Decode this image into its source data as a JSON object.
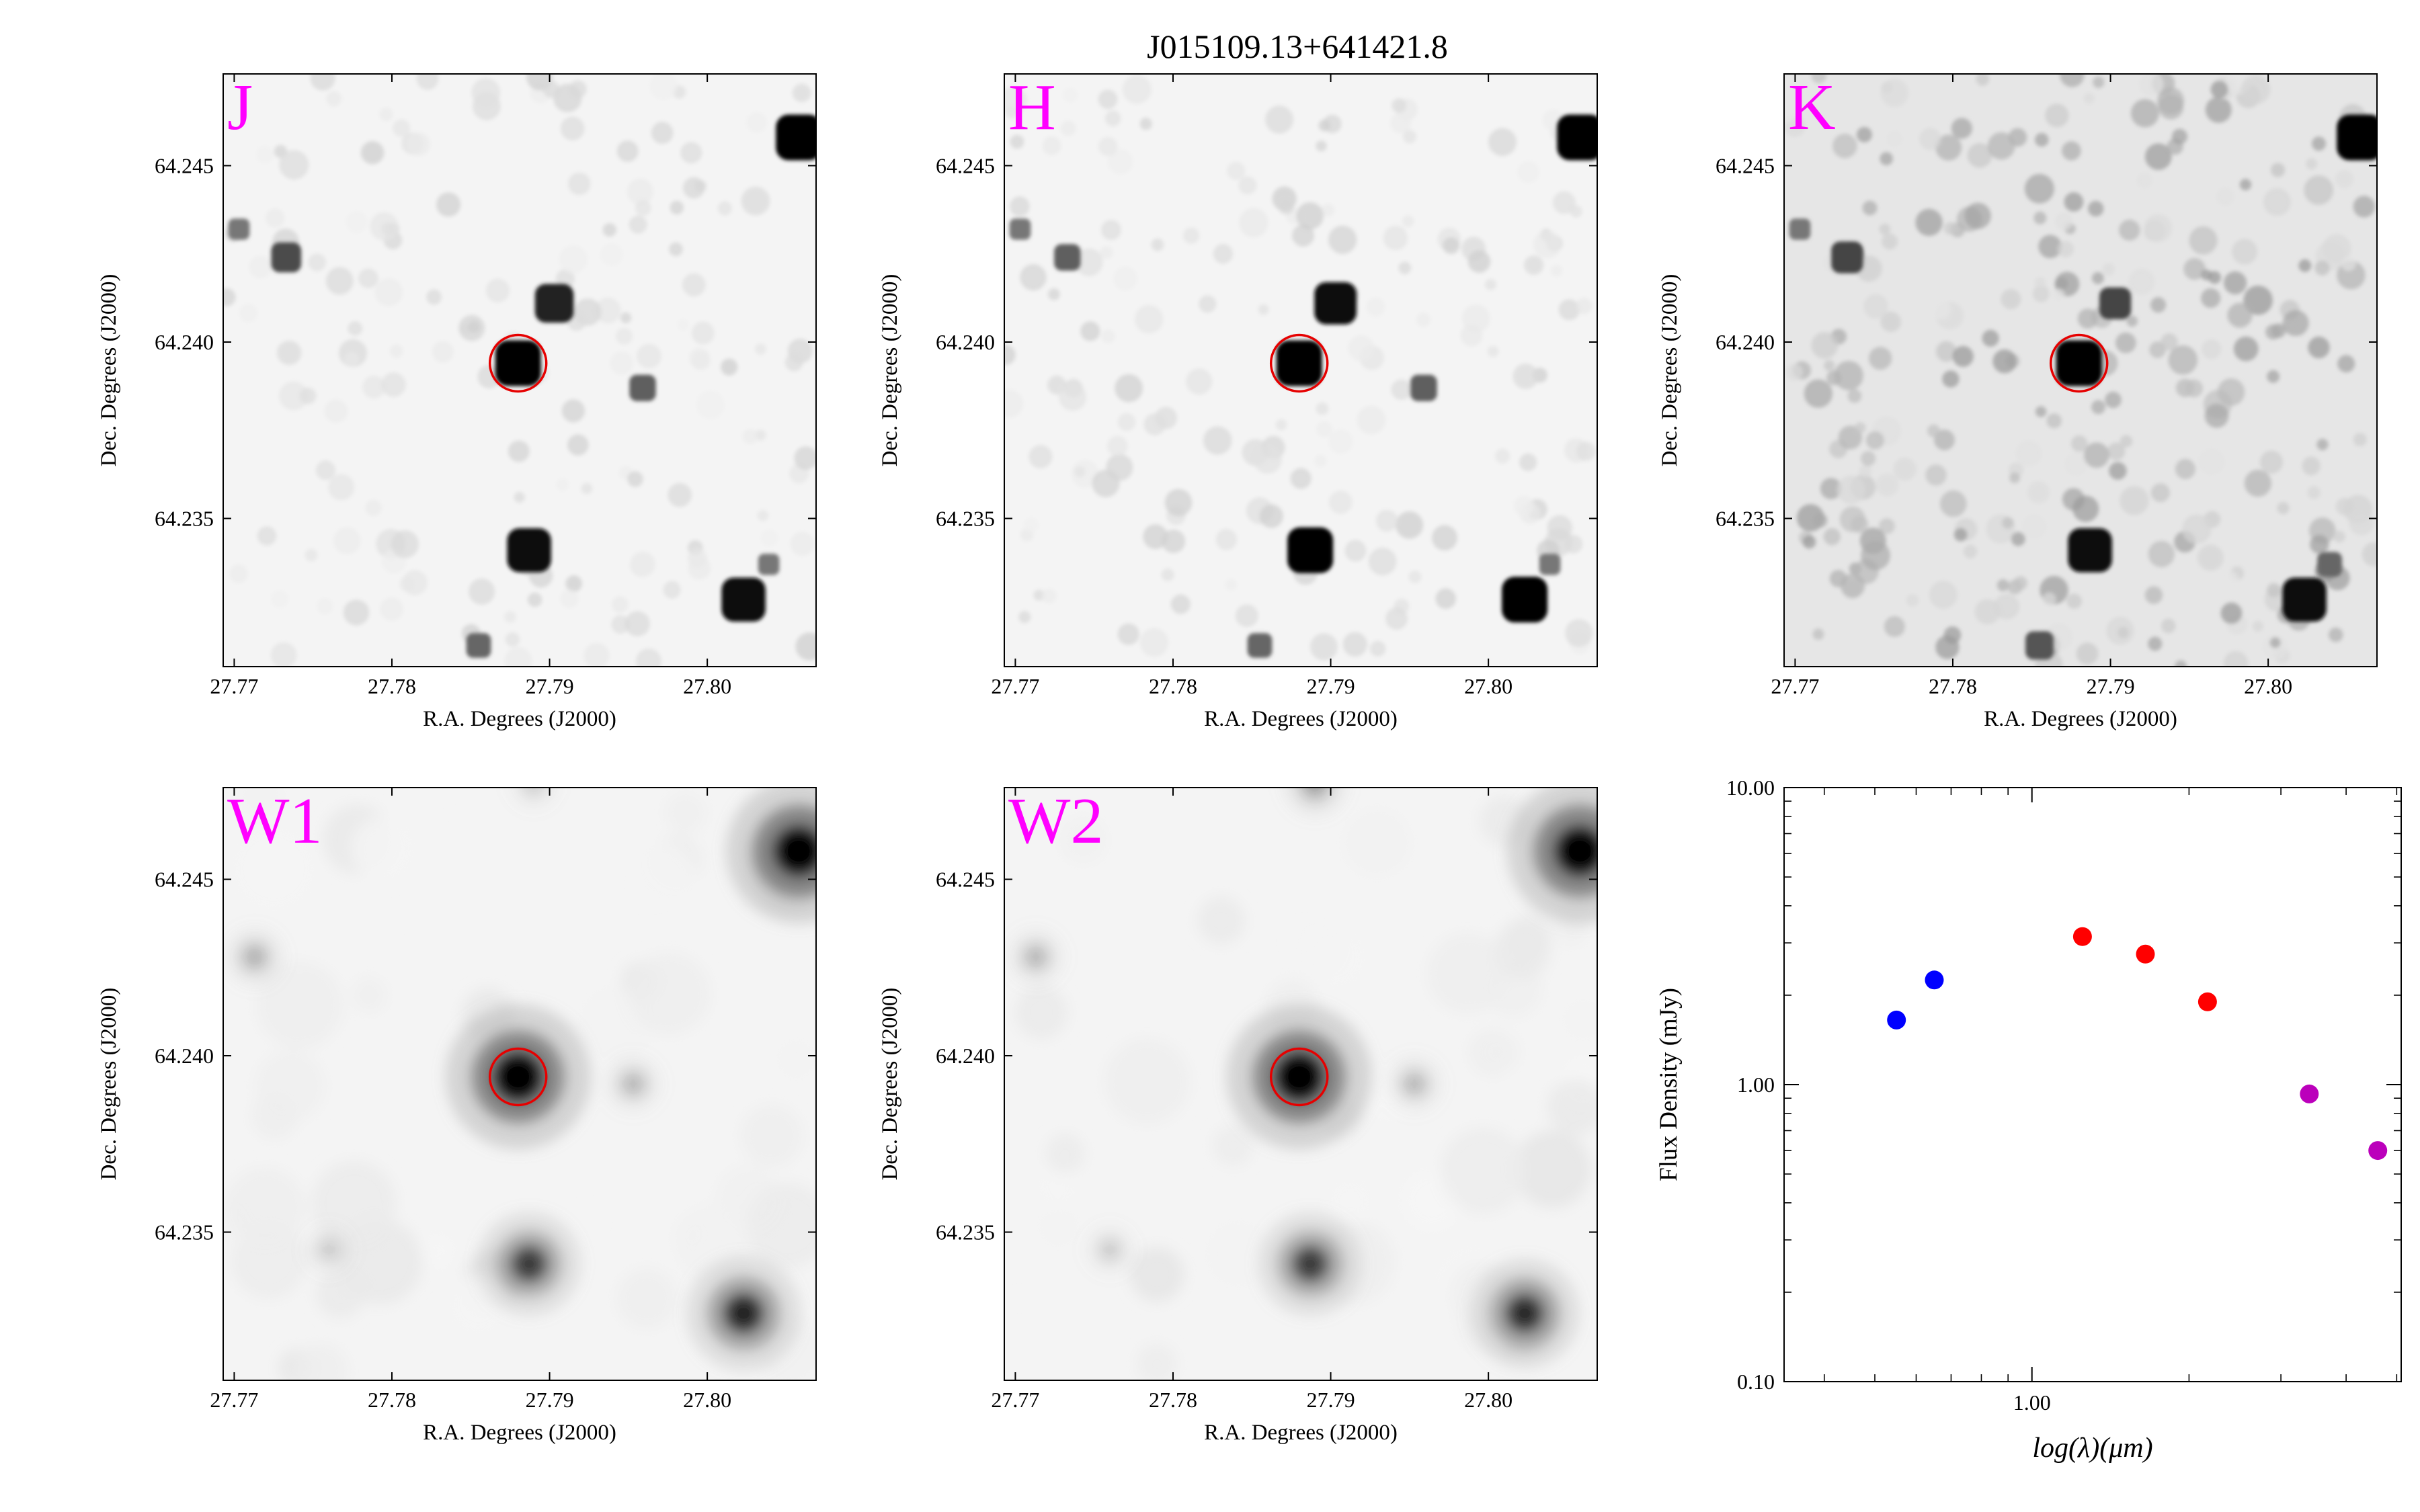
{
  "figure": {
    "title": "J015109.13+641421.8"
  },
  "image_panels": [
    {
      "band": "J",
      "xlabel": "R.A. Degrees (J2000)",
      "ylabel": "Dec. Degrees (J2000)",
      "xticks": [
        "27.77",
        "27.78",
        "27.79",
        "27.80"
      ],
      "yticks": [
        "64.245",
        "64.240",
        "64.235"
      ],
      "style": "sharp",
      "marker": {
        "ra": 27.788,
        "dec": 64.2394
      },
      "sources": [
        {
          "ra": 27.8058,
          "dec": 64.2458,
          "strength": 1.0
        },
        {
          "ra": 27.788,
          "dec": 64.2394,
          "strength": 1.0
        },
        {
          "ra": 27.7903,
          "dec": 64.2411,
          "strength": 0.8
        },
        {
          "ra": 27.7959,
          "dec": 64.2387,
          "strength": 0.45
        },
        {
          "ra": 27.7733,
          "dec": 64.2424,
          "strength": 0.55
        },
        {
          "ra": 27.7703,
          "dec": 64.2432,
          "strength": 0.3
        },
        {
          "ra": 27.7887,
          "dec": 64.2341,
          "strength": 0.95
        },
        {
          "ra": 27.8023,
          "dec": 64.2327,
          "strength": 0.95
        },
        {
          "ra": 27.8039,
          "dec": 64.2337,
          "strength": 0.3
        },
        {
          "ra": 27.7855,
          "dec": 64.2314,
          "strength": 0.4
        }
      ]
    },
    {
      "band": "H",
      "xlabel": "R.A. Degrees (J2000)",
      "ylabel": "Dec. Degrees (J2000)",
      "xticks": [
        "27.77",
        "27.78",
        "27.79",
        "27.80"
      ],
      "yticks": [
        "64.245",
        "64.240",
        "64.235"
      ],
      "style": "sharp",
      "marker": {
        "ra": 27.788,
        "dec": 64.2394
      },
      "sources": [
        {
          "ra": 27.8058,
          "dec": 64.2458,
          "strength": 1.0
        },
        {
          "ra": 27.788,
          "dec": 64.2394,
          "strength": 1.0
        },
        {
          "ra": 27.7903,
          "dec": 64.2411,
          "strength": 0.9
        },
        {
          "ra": 27.7959,
          "dec": 64.2387,
          "strength": 0.45
        },
        {
          "ra": 27.7733,
          "dec": 64.2424,
          "strength": 0.45
        },
        {
          "ra": 27.7703,
          "dec": 64.2432,
          "strength": 0.3
        },
        {
          "ra": 27.7887,
          "dec": 64.2341,
          "strength": 1.0
        },
        {
          "ra": 27.8023,
          "dec": 64.2327,
          "strength": 1.0
        },
        {
          "ra": 27.8039,
          "dec": 64.2337,
          "strength": 0.3
        },
        {
          "ra": 27.7855,
          "dec": 64.2314,
          "strength": 0.4
        }
      ]
    },
    {
      "band": "K",
      "xlabel": "R.A. Degrees (J2000)",
      "ylabel": "Dec. Degrees (J2000)",
      "xticks": [
        "27.77",
        "27.78",
        "27.79",
        "27.80"
      ],
      "yticks": [
        "64.245",
        "64.240",
        "64.235"
      ],
      "style": "noisy",
      "marker": {
        "ra": 27.788,
        "dec": 64.2394
      },
      "sources": [
        {
          "ra": 27.8058,
          "dec": 64.2458,
          "strength": 1.0
        },
        {
          "ra": 27.788,
          "dec": 64.2394,
          "strength": 1.0
        },
        {
          "ra": 27.7903,
          "dec": 64.2411,
          "strength": 0.6
        },
        {
          "ra": 27.7733,
          "dec": 64.2424,
          "strength": 0.6
        },
        {
          "ra": 27.7703,
          "dec": 64.2432,
          "strength": 0.3
        },
        {
          "ra": 27.7887,
          "dec": 64.2341,
          "strength": 0.95
        },
        {
          "ra": 27.8023,
          "dec": 64.2327,
          "strength": 0.95
        },
        {
          "ra": 27.8039,
          "dec": 64.2337,
          "strength": 0.4
        },
        {
          "ra": 27.7855,
          "dec": 64.2314,
          "strength": 0.5
        }
      ]
    },
    {
      "band": "W1",
      "xlabel": "R.A. Degrees (J2000)",
      "ylabel": "Dec. Degrees (J2000)",
      "xticks": [
        "27.77",
        "27.78",
        "27.79",
        "27.80"
      ],
      "yticks": [
        "64.245",
        "64.240",
        "64.235"
      ],
      "style": "blurry",
      "marker": {
        "ra": 27.788,
        "dec": 64.2394
      },
      "sources": [
        {
          "ra": 27.8058,
          "dec": 64.2458,
          "strength": 1.0
        },
        {
          "ra": 27.788,
          "dec": 64.2394,
          "strength": 1.0
        },
        {
          "ra": 27.7887,
          "dec": 64.2341,
          "strength": 0.6
        },
        {
          "ra": 27.8023,
          "dec": 64.2327,
          "strength": 0.7
        },
        {
          "ra": 27.7713,
          "dec": 64.2428,
          "strength": 0.2
        },
        {
          "ra": 27.7953,
          "dec": 64.2392,
          "strength": 0.18
        },
        {
          "ra": 27.776,
          "dec": 64.2345,
          "strength": 0.12
        },
        {
          "ra": 27.789,
          "dec": 64.2477,
          "strength": 0.12
        }
      ]
    },
    {
      "band": "W2",
      "xlabel": "R.A. Degrees (J2000)",
      "ylabel": "Dec. Degrees (J2000)",
      "xticks": [
        "27.77",
        "27.78",
        "27.79",
        "27.80"
      ],
      "yticks": [
        "64.245",
        "64.240",
        "64.235"
      ],
      "style": "blurry",
      "marker": {
        "ra": 27.788,
        "dec": 64.2394
      },
      "sources": [
        {
          "ra": 27.8058,
          "dec": 64.2458,
          "strength": 1.0
        },
        {
          "ra": 27.788,
          "dec": 64.2394,
          "strength": 1.0
        },
        {
          "ra": 27.7887,
          "dec": 64.2341,
          "strength": 0.6
        },
        {
          "ra": 27.8023,
          "dec": 64.2327,
          "strength": 0.65
        },
        {
          "ra": 27.7713,
          "dec": 64.2428,
          "strength": 0.18
        },
        {
          "ra": 27.7953,
          "dec": 64.2392,
          "strength": 0.18
        },
        {
          "ra": 27.776,
          "dec": 64.2345,
          "strength": 0.12
        },
        {
          "ra": 27.789,
          "dec": 64.2477,
          "strength": 0.25
        }
      ]
    }
  ],
  "image_axes": {
    "xlim": [
      27.7693,
      27.8069
    ],
    "ylim": [
      64.2308,
      64.2476
    ]
  },
  "chart_data": {
    "type": "scatter",
    "title": "",
    "xlabel": "log(λ)(μm)",
    "ylabel": "Flux Density (mJy)",
    "xscale": "log",
    "yscale": "log",
    "xlim": [
      0.335,
      5.1
    ],
    "ylim": [
      0.1,
      10.0
    ],
    "xticks": [
      "1.00"
    ],
    "yticks": [
      "10.00",
      "1.00",
      "0.10"
    ],
    "series": [
      {
        "color": "#0000ff",
        "x": [
          0.55,
          0.65
        ],
        "y": [
          1.65,
          2.25
        ]
      },
      {
        "color": "#ff0000",
        "x": [
          1.25,
          1.65,
          2.17
        ],
        "y": [
          3.15,
          2.75,
          1.9
        ]
      },
      {
        "color": "#bb00bb",
        "x": [
          3.4,
          4.6
        ],
        "y": [
          0.93,
          0.6
        ]
      }
    ]
  }
}
